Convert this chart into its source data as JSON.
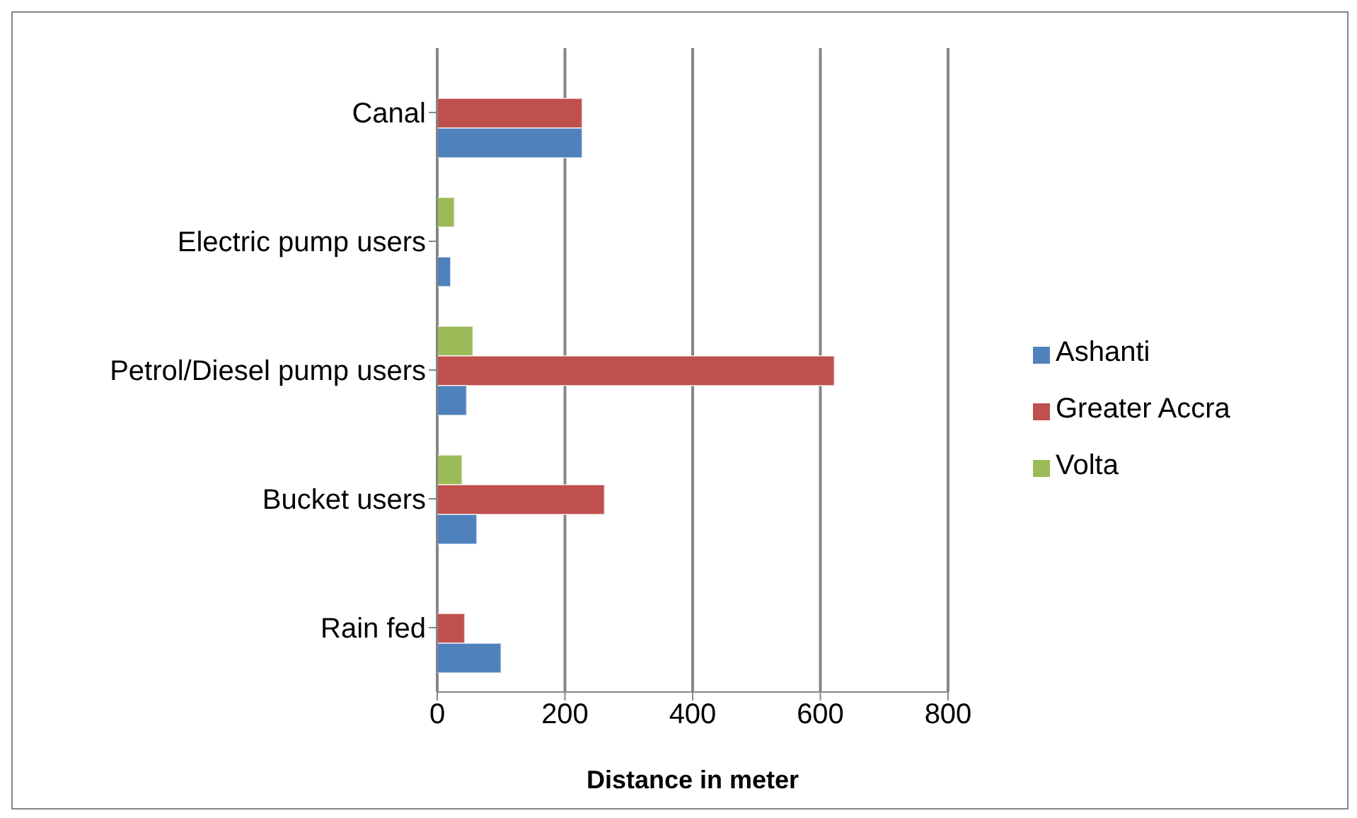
{
  "chart_data": {
    "type": "bar",
    "orientation": "horizontal",
    "xlabel": "Distance in meter",
    "categories": [
      "Canal",
      "Electric pump users",
      "Petrol/Diesel pump users",
      "Bucket users",
      "Rain fed"
    ],
    "series": [
      {
        "name": "Volta",
        "color": "#9bbb59",
        "values": [
          null,
          27,
          56,
          39,
          null
        ]
      },
      {
        "name": "Greater Accra",
        "color": "#c0504d",
        "values": [
          227,
          null,
          622,
          262,
          43
        ]
      },
      {
        "name": "Ashanti",
        "color": "#4f81bd",
        "values": [
          227,
          21,
          46,
          62,
          100
        ]
      }
    ],
    "xlim": [
      0,
      800
    ],
    "xticks": [
      0,
      200,
      400,
      600,
      800
    ],
    "grid": "x",
    "legend": "right"
  }
}
